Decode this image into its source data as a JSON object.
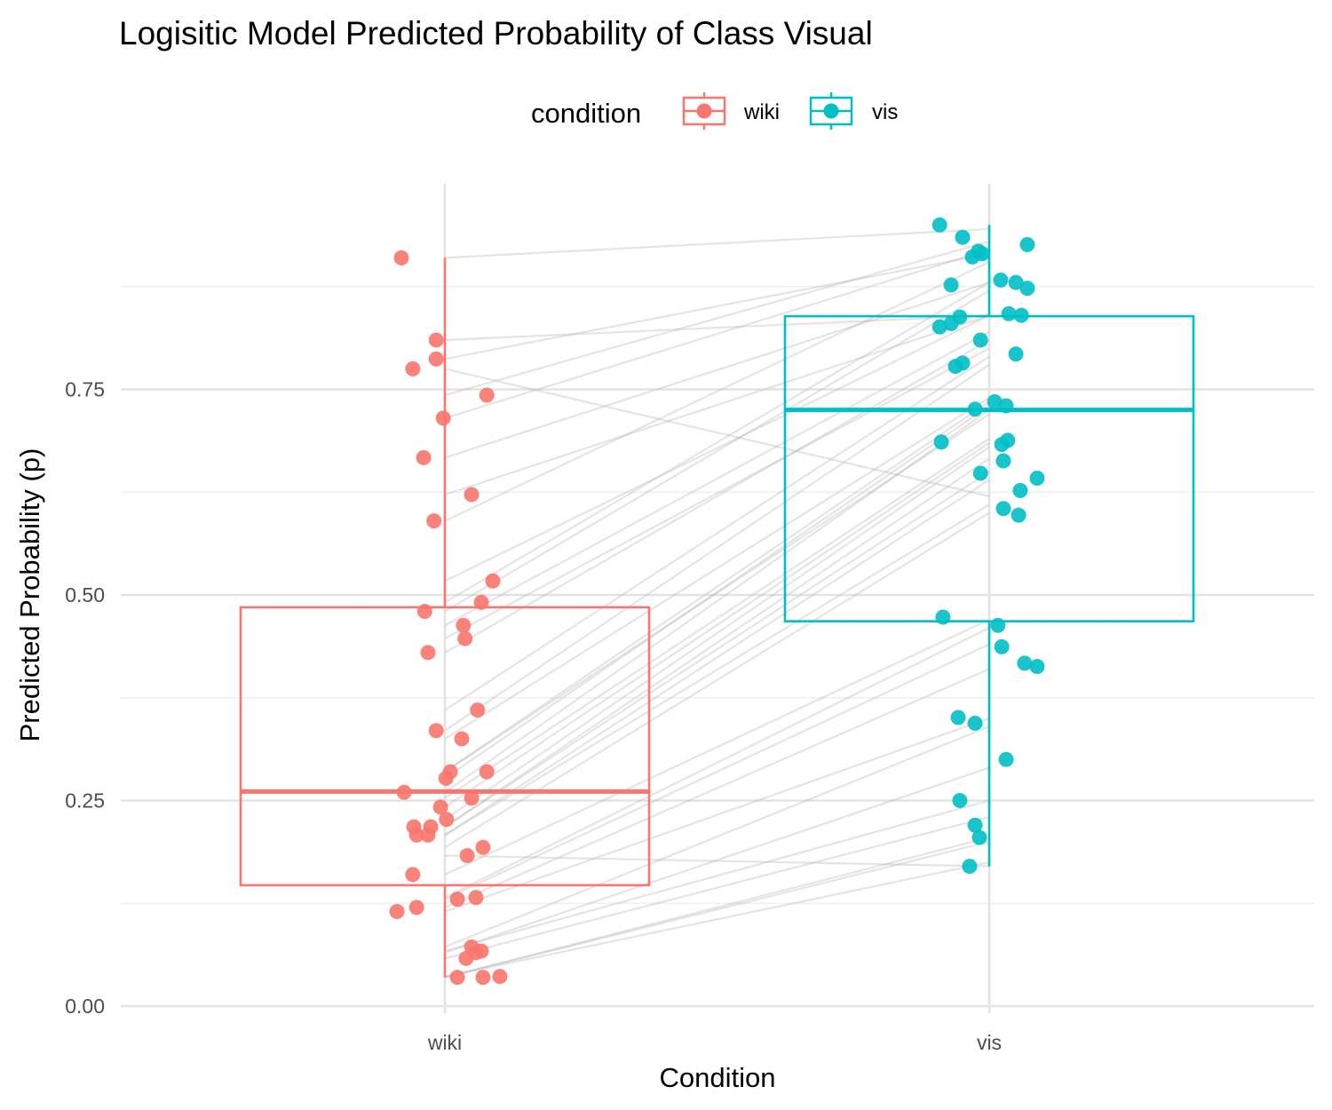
{
  "chart_data": {
    "type": "box",
    "title": "Logisitic Model Predicted Probability of Class Visual",
    "xlabel": "Condition",
    "ylabel": "Predicted Probability (p)",
    "ylim": [
      0,
      0.96
    ],
    "y_ticks": [
      0,
      0.25,
      0.5,
      0.75
    ],
    "y_tick_labels": [
      "0.00",
      "0.25",
      "0.50",
      "0.75"
    ],
    "y_minor_grid": [
      0.125,
      0.375,
      0.625,
      0.875
    ],
    "categories": [
      "wiki",
      "vis"
    ],
    "grid": true,
    "legend": {
      "title": "condition",
      "position": "top",
      "items": [
        "wiki",
        "vis"
      ]
    },
    "colors": {
      "wiki": "#F8766D",
      "vis": "#00BFC4"
    },
    "boxes": [
      {
        "category": "wiki",
        "min": 0.035,
        "q1": 0.147,
        "median": 0.261,
        "q3": 0.485,
        "max": 0.91
      },
      {
        "category": "vis",
        "min": 0.17,
        "q1": 0.468,
        "median": 0.725,
        "q3": 0.839,
        "max": 0.95
      }
    ],
    "points": {
      "wiki": [
        {
          "jitter": -0.08,
          "y": 0.91
        },
        {
          "jitter": -0.016,
          "y": 0.81
        },
        {
          "jitter": -0.016,
          "y": 0.787
        },
        {
          "jitter": -0.059,
          "y": 0.775
        },
        {
          "jitter": 0.077,
          "y": 0.743
        },
        {
          "jitter": -0.003,
          "y": 0.715
        },
        {
          "jitter": -0.039,
          "y": 0.667
        },
        {
          "jitter": 0.049,
          "y": 0.622
        },
        {
          "jitter": -0.02,
          "y": 0.59
        },
        {
          "jitter": 0.088,
          "y": 0.517
        },
        {
          "jitter": 0.067,
          "y": 0.491
        },
        {
          "jitter": -0.037,
          "y": 0.48
        },
        {
          "jitter": 0.034,
          "y": 0.463
        },
        {
          "jitter": 0.037,
          "y": 0.447
        },
        {
          "jitter": -0.031,
          "y": 0.43
        },
        {
          "jitter": 0.06,
          "y": 0.36
        },
        {
          "jitter": -0.016,
          "y": 0.335
        },
        {
          "jitter": 0.031,
          "y": 0.325
        },
        {
          "jitter": 0.01,
          "y": 0.285
        },
        {
          "jitter": 0.077,
          "y": 0.285
        },
        {
          "jitter": 0.002,
          "y": 0.277
        },
        {
          "jitter": -0.075,
          "y": 0.26
        },
        {
          "jitter": 0.049,
          "y": 0.253
        },
        {
          "jitter": -0.008,
          "y": 0.242
        },
        {
          "jitter": 0.003,
          "y": 0.227
        },
        {
          "jitter": -0.057,
          "y": 0.218
        },
        {
          "jitter": -0.026,
          "y": 0.218
        },
        {
          "jitter": -0.052,
          "y": 0.208
        },
        {
          "jitter": -0.031,
          "y": 0.208
        },
        {
          "jitter": 0.07,
          "y": 0.193
        },
        {
          "jitter": 0.041,
          "y": 0.183
        },
        {
          "jitter": -0.059,
          "y": 0.16
        },
        {
          "jitter": 0.057,
          "y": 0.132
        },
        {
          "jitter": 0.023,
          "y": 0.13
        },
        {
          "jitter": -0.052,
          "y": 0.12
        },
        {
          "jitter": -0.088,
          "y": 0.115
        },
        {
          "jitter": 0.049,
          "y": 0.072
        },
        {
          "jitter": 0.057,
          "y": 0.065
        },
        {
          "jitter": 0.067,
          "y": 0.067
        },
        {
          "jitter": 0.039,
          "y": 0.058
        },
        {
          "jitter": 0.023,
          "y": 0.035
        },
        {
          "jitter": 0.07,
          "y": 0.035
        },
        {
          "jitter": 0.101,
          "y": 0.036
        }
      ],
      "vis": [
        {
          "jitter": -0.091,
          "y": 0.95
        },
        {
          "jitter": -0.049,
          "y": 0.935
        },
        {
          "jitter": 0.07,
          "y": 0.926
        },
        {
          "jitter": -0.02,
          "y": 0.918
        },
        {
          "jitter": -0.031,
          "y": 0.911
        },
        {
          "jitter": -0.013,
          "y": 0.915
        },
        {
          "jitter": 0.021,
          "y": 0.883
        },
        {
          "jitter": 0.049,
          "y": 0.88
        },
        {
          "jitter": 0.07,
          "y": 0.873
        },
        {
          "jitter": -0.07,
          "y": 0.877
        },
        {
          "jitter": 0.036,
          "y": 0.842
        },
        {
          "jitter": 0.059,
          "y": 0.84
        },
        {
          "jitter": -0.054,
          "y": 0.838
        },
        {
          "jitter": -0.07,
          "y": 0.83
        },
        {
          "jitter": -0.091,
          "y": 0.826
        },
        {
          "jitter": -0.016,
          "y": 0.81
        },
        {
          "jitter": 0.049,
          "y": 0.793
        },
        {
          "jitter": -0.049,
          "y": 0.782
        },
        {
          "jitter": -0.062,
          "y": 0.778
        },
        {
          "jitter": 0.01,
          "y": 0.735
        },
        {
          "jitter": 0.031,
          "y": 0.73
        },
        {
          "jitter": -0.026,
          "y": 0.726
        },
        {
          "jitter": -0.088,
          "y": 0.686
        },
        {
          "jitter": 0.034,
          "y": 0.688
        },
        {
          "jitter": 0.023,
          "y": 0.683
        },
        {
          "jitter": 0.026,
          "y": 0.663
        },
        {
          "jitter": -0.016,
          "y": 0.648
        },
        {
          "jitter": 0.088,
          "y": 0.642
        },
        {
          "jitter": 0.057,
          "y": 0.627
        },
        {
          "jitter": 0.026,
          "y": 0.605
        },
        {
          "jitter": 0.054,
          "y": 0.597
        },
        {
          "jitter": -0.085,
          "y": 0.473
        },
        {
          "jitter": 0.016,
          "y": 0.463
        },
        {
          "jitter": 0.023,
          "y": 0.437
        },
        {
          "jitter": 0.065,
          "y": 0.417
        },
        {
          "jitter": 0.088,
          "y": 0.413
        },
        {
          "jitter": -0.057,
          "y": 0.351
        },
        {
          "jitter": -0.026,
          "y": 0.344
        },
        {
          "jitter": 0.031,
          "y": 0.3
        },
        {
          "jitter": -0.054,
          "y": 0.25
        },
        {
          "jitter": -0.026,
          "y": 0.22
        },
        {
          "jitter": -0.018,
          "y": 0.205
        },
        {
          "jitter": -0.036,
          "y": 0.17
        }
      ]
    },
    "pairs": [
      [
        0.91,
        0.945
      ],
      [
        0.81,
        0.84
      ],
      [
        0.787,
        0.915
      ],
      [
        0.775,
        0.62
      ],
      [
        0.743,
        0.93
      ],
      [
        0.715,
        0.92
      ],
      [
        0.667,
        0.88
      ],
      [
        0.622,
        0.84
      ],
      [
        0.59,
        0.905
      ],
      [
        0.517,
        0.84
      ],
      [
        0.491,
        0.88
      ],
      [
        0.48,
        0.87
      ],
      [
        0.463,
        0.82
      ],
      [
        0.447,
        0.8
      ],
      [
        0.43,
        0.81
      ],
      [
        0.36,
        0.79
      ],
      [
        0.335,
        0.78
      ],
      [
        0.325,
        0.74
      ],
      [
        0.285,
        0.735
      ],
      [
        0.285,
        0.72
      ],
      [
        0.277,
        0.73
      ],
      [
        0.26,
        0.725
      ],
      [
        0.253,
        0.69
      ],
      [
        0.242,
        0.685
      ],
      [
        0.227,
        0.68
      ],
      [
        0.218,
        0.666
      ],
      [
        0.218,
        0.65
      ],
      [
        0.208,
        0.64
      ],
      [
        0.208,
        0.61
      ],
      [
        0.193,
        0.6
      ],
      [
        0.183,
        0.17
      ],
      [
        0.16,
        0.47
      ],
      [
        0.132,
        0.46
      ],
      [
        0.13,
        0.44
      ],
      [
        0.12,
        0.41
      ],
      [
        0.115,
        0.35
      ],
      [
        0.072,
        0.34
      ],
      [
        0.065,
        0.29
      ],
      [
        0.067,
        0.25
      ],
      [
        0.058,
        0.23
      ],
      [
        0.035,
        0.205
      ],
      [
        0.035,
        0.2
      ],
      [
        0.036,
        0.175
      ]
    ]
  }
}
